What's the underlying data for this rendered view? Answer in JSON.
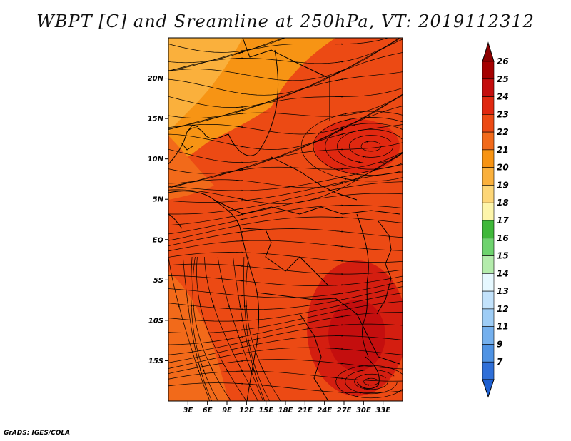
{
  "title": "WBPT [C] and Sreamline at 250hPa, VT: 2019112312",
  "footer": "GrADS: IGES/COLA",
  "map": {
    "lon_range": [
      0,
      36
    ],
    "lat_range": [
      -20,
      25
    ],
    "lat_ticks": [
      {
        "value": 20,
        "label": "20N"
      },
      {
        "value": 15,
        "label": "15N"
      },
      {
        "value": 10,
        "label": "10N"
      },
      {
        "value": 5,
        "label": "5N"
      },
      {
        "value": 0,
        "label": "EQ"
      },
      {
        "value": -5,
        "label": "5S"
      },
      {
        "value": -10,
        "label": "10S"
      },
      {
        "value": -15,
        "label": "15S"
      }
    ],
    "lon_ticks": [
      {
        "value": 3,
        "label": "3E"
      },
      {
        "value": 6,
        "label": "6E"
      },
      {
        "value": 9,
        "label": "9E"
      },
      {
        "value": 12,
        "label": "12E"
      },
      {
        "value": 15,
        "label": "15E"
      },
      {
        "value": 18,
        "label": "18E"
      },
      {
        "value": 21,
        "label": "21E"
      },
      {
        "value": 24,
        "label": "24E"
      },
      {
        "value": 27,
        "label": "27E"
      },
      {
        "value": 30,
        "label": "30E"
      },
      {
        "value": 33,
        "label": "33E"
      }
    ]
  },
  "colorbar": {
    "levels": [
      "26",
      "25",
      "24",
      "23",
      "22",
      "21",
      "20",
      "19",
      "18",
      "17",
      "16",
      "15",
      "14",
      "13",
      "12",
      "11",
      "9",
      "7"
    ],
    "colors": [
      "#a50000",
      "#c40e0e",
      "#e02810",
      "#ec4a14",
      "#f26a1a",
      "#f79414",
      "#fab03c",
      "#fdd677",
      "#fdf5aa",
      "#3fb83a",
      "#6ed36e",
      "#b4ecac",
      "#e6f8ff",
      "#c2e2fb",
      "#9ecdf6",
      "#74b0ee",
      "#4f93e4",
      "#2f6fd8"
    ],
    "top_color": "#8c0000",
    "bottom_color": "#1d5fd1"
  }
}
